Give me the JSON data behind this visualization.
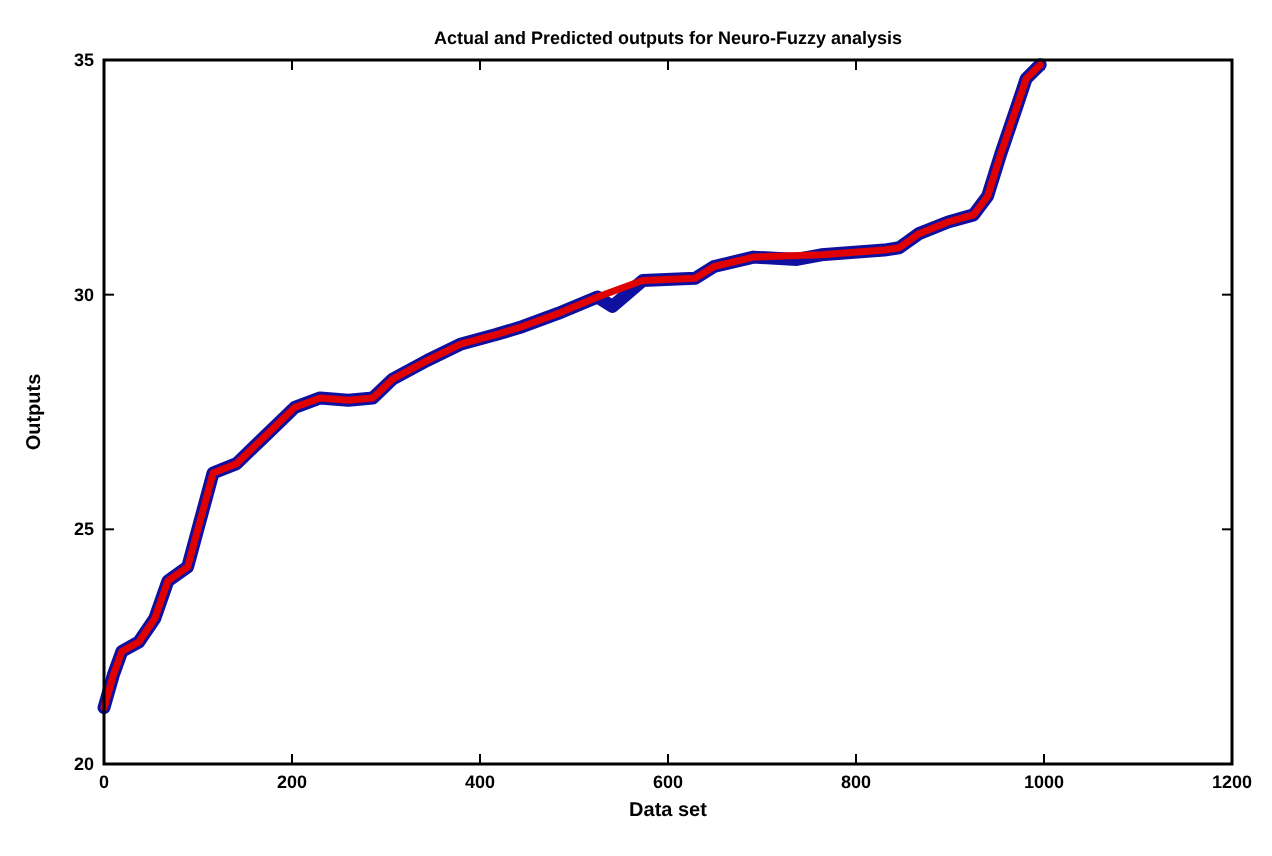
{
  "chart_data": {
    "type": "line",
    "title": "Actual and Predicted outputs for Neuro-Fuzzy analysis",
    "xlabel": "Data set",
    "ylabel": "Outputs",
    "xlim": [
      0,
      1200
    ],
    "xticks": [
      0,
      200,
      400,
      600,
      800,
      1000,
      1200
    ],
    "ylim": [
      20,
      35
    ],
    "yticks": [
      20,
      25,
      30,
      35
    ],
    "grid": false,
    "series": [
      {
        "color": "#1010a0",
        "x": [
          0,
          10,
          19,
          37,
          54,
          68,
          89,
          116,
          141,
          172,
          203,
          230,
          260,
          286,
          307,
          344,
          380,
          417,
          442,
          483,
          525,
          541,
          573,
          629,
          649,
          691,
          737,
          763,
          830,
          846,
          867,
          898,
          925,
          940,
          954,
          971,
          981,
          996
        ],
        "values": [
          21.2,
          21.9,
          22.4,
          22.6,
          23.1,
          23.9,
          24.2,
          26.2,
          26.4,
          27.0,
          27.6,
          27.8,
          27.75,
          27.8,
          28.2,
          28.6,
          28.95,
          29.15,
          29.3,
          29.6,
          29.95,
          29.75,
          30.3,
          30.35,
          30.6,
          30.8,
          30.75,
          30.85,
          30.95,
          31.0,
          31.3,
          31.55,
          31.7,
          32.1,
          33.0,
          34.0,
          34.6,
          34.9
        ]
      },
      {
        "color": "#e00000",
        "x": [
          0,
          10,
          19,
          37,
          54,
          68,
          89,
          116,
          141,
          172,
          203,
          230,
          260,
          286,
          307,
          344,
          380,
          417,
          442,
          483,
          525,
          573,
          629,
          649,
          691,
          763,
          830,
          846,
          867,
          898,
          925,
          940,
          954,
          971,
          981,
          996
        ],
        "values": [
          21.2,
          21.9,
          22.4,
          22.6,
          23.1,
          23.9,
          24.2,
          26.2,
          26.4,
          27.0,
          27.6,
          27.8,
          27.75,
          27.8,
          28.2,
          28.6,
          28.95,
          29.15,
          29.3,
          29.6,
          29.95,
          30.3,
          30.35,
          30.6,
          30.8,
          30.85,
          30.95,
          31.0,
          31.3,
          31.55,
          31.7,
          32.1,
          33.0,
          34.0,
          34.6,
          34.9
        ]
      }
    ]
  }
}
